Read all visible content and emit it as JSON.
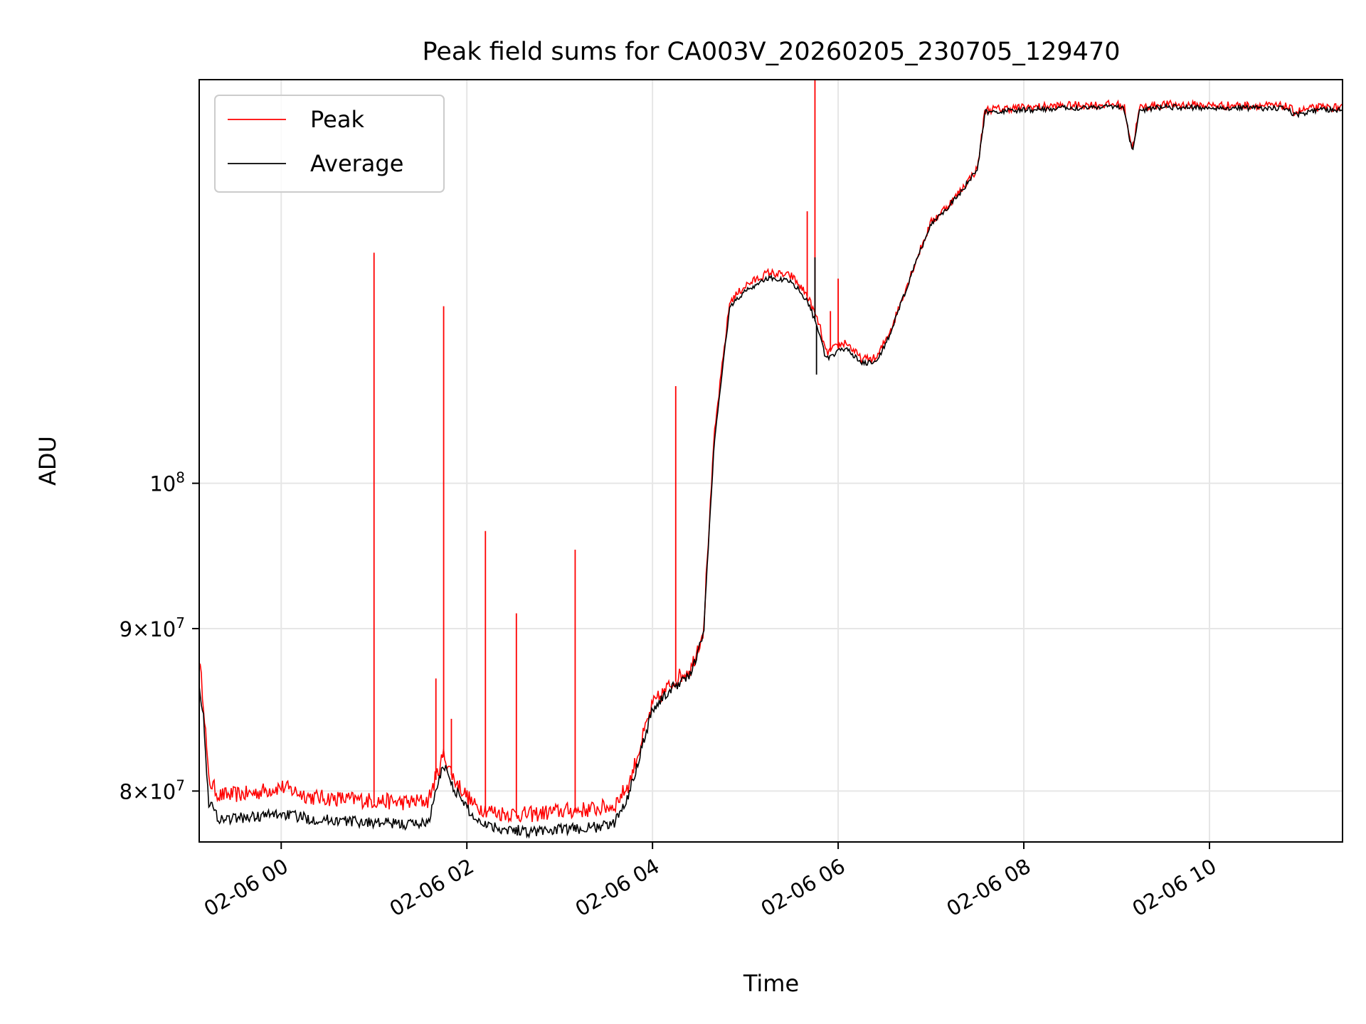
{
  "chart_data": {
    "type": "line",
    "title": "Peak field sums for CA003V_20260205_230705_129470",
    "xlabel": "Time",
    "ylabel": "ADU",
    "yscale": "log",
    "grid": true,
    "legend_position": "upper-left",
    "x_range": [
      "2026-02-05 23:07",
      "2026-02-06 11:26"
    ],
    "ylim": [
      77100000,
      134000000
    ],
    "x_ticks": [
      {
        "value": "2026-02-06 00:00",
        "label": "02-06 00"
      },
      {
        "value": "2026-02-06 02:00",
        "label": "02-06 02"
      },
      {
        "value": "2026-02-06 04:00",
        "label": "02-06 04"
      },
      {
        "value": "2026-02-06 06:00",
        "label": "02-06 06"
      },
      {
        "value": "2026-02-06 08:00",
        "label": "02-06 08"
      },
      {
        "value": "2026-02-06 10:00",
        "label": "02-06 10"
      }
    ],
    "y_ticks": [
      {
        "value": 80000000,
        "label_mantissa": "8",
        "label_base": "10",
        "label_exp": "7"
      },
      {
        "value": 90000000,
        "label_mantissa": "9",
        "label_base": "10",
        "label_exp": "7"
      },
      {
        "value": 100000000,
        "label_mantissa": "",
        "label_base": "10",
        "label_exp": "8"
      }
    ],
    "series": [
      {
        "name": "Peak",
        "color": "#ff0000",
        "x": [
          "2026-02-05 23:07",
          "2026-02-05 23:10",
          "2026-02-05 23:13",
          "2026-02-05 23:20",
          "2026-02-05 23:40",
          "2026-02-06 00:00",
          "2026-02-06 00:20",
          "2026-02-06 00:40",
          "2026-02-06 01:00",
          "2026-02-06 01:20",
          "2026-02-06 01:35",
          "2026-02-06 01:45",
          "2026-02-06 01:52",
          "2026-02-06 02:05",
          "2026-02-06 02:20",
          "2026-02-06 02:40",
          "2026-02-06 03:00",
          "2026-02-06 03:20",
          "2026-02-06 03:35",
          "2026-02-06 03:45",
          "2026-02-06 04:00",
          "2026-02-06 04:15",
          "2026-02-06 04:25",
          "2026-02-06 04:33",
          "2026-02-06 04:40",
          "2026-02-06 04:50",
          "2026-02-06 05:00",
          "2026-02-06 05:15",
          "2026-02-06 05:30",
          "2026-02-06 05:40",
          "2026-02-06 05:48",
          "2026-02-06 05:52",
          "2026-02-06 06:05",
          "2026-02-06 06:15",
          "2026-02-06 06:25",
          "2026-02-06 06:35",
          "2026-02-06 06:50",
          "2026-02-06 07:00",
          "2026-02-06 07:15",
          "2026-02-06 07:30",
          "2026-02-06 07:35",
          "2026-02-06 08:00",
          "2026-02-06 08:30",
          "2026-02-06 09:00",
          "2026-02-06 09:05",
          "2026-02-06 09:10",
          "2026-02-06 09:15",
          "2026-02-06 09:30",
          "2026-02-06 10:00",
          "2026-02-06 10:30",
          "2026-02-06 10:50",
          "2026-02-06 10:55",
          "2026-02-06 11:10",
          "2026-02-06 11:26"
        ],
        "y": [
          87800000,
          85000000,
          80500000,
          79600000,
          79700000,
          80100000,
          79500000,
          79400000,
          79300000,
          79200000,
          79300000,
          82000000,
          80500000,
          79000000,
          78600000,
          78500000,
          78700000,
          78800000,
          79000000,
          80300000,
          85000000,
          86600000,
          87300000,
          89800000,
          103500000,
          114000000,
          115300000,
          116400000,
          116100000,
          114500000,
          112000000,
          109800000,
          110700000,
          109300000,
          109400000,
          112000000,
          117300000,
          120700000,
          122800000,
          125500000,
          131000000,
          131200000,
          131400000,
          131500000,
          131200000,
          127300000,
          131200000,
          131500000,
          131400000,
          131400000,
          131300000,
          130800000,
          131200000,
          131200000
        ],
        "spikes": [
          {
            "x": "2026-02-06 01:00",
            "y": 118200000
          },
          {
            "x": "2026-02-06 01:40",
            "y": 86800000
          },
          {
            "x": "2026-02-06 01:45",
            "y": 113700000
          },
          {
            "x": "2026-02-06 01:50",
            "y": 84300000
          },
          {
            "x": "2026-02-06 02:12",
            "y": 96600000
          },
          {
            "x": "2026-02-06 02:32",
            "y": 91000000
          },
          {
            "x": "2026-02-06 03:10",
            "y": 95300000
          },
          {
            "x": "2026-02-06 04:15",
            "y": 107300000
          },
          {
            "x": "2026-02-06 05:40",
            "y": 121800000
          },
          {
            "x": "2026-02-06 05:45",
            "y": 134000000
          },
          {
            "x": "2026-02-06 05:55",
            "y": 113300000
          },
          {
            "x": "2026-02-06 06:00",
            "y": 116000000
          }
        ]
      },
      {
        "name": "Average",
        "color": "#000000",
        "x": [
          "2026-02-05 23:07",
          "2026-02-05 23:10",
          "2026-02-05 23:13",
          "2026-02-05 23:20",
          "2026-02-05 23:40",
          "2026-02-06 00:00",
          "2026-02-06 00:20",
          "2026-02-06 00:40",
          "2026-02-06 01:00",
          "2026-02-06 01:20",
          "2026-02-06 01:35",
          "2026-02-06 01:45",
          "2026-02-06 01:52",
          "2026-02-06 02:05",
          "2026-02-06 02:20",
          "2026-02-06 02:40",
          "2026-02-06 03:00",
          "2026-02-06 03:20",
          "2026-02-06 03:35",
          "2026-02-06 03:45",
          "2026-02-06 04:00",
          "2026-02-06 04:15",
          "2026-02-06 04:25",
          "2026-02-06 04:33",
          "2026-02-06 04:40",
          "2026-02-06 04:50",
          "2026-02-06 05:00",
          "2026-02-06 05:15",
          "2026-02-06 05:30",
          "2026-02-06 05:40",
          "2026-02-06 05:48",
          "2026-02-06 05:52",
          "2026-02-06 06:05",
          "2026-02-06 06:15",
          "2026-02-06 06:25",
          "2026-02-06 06:35",
          "2026-02-06 06:50",
          "2026-02-06 07:00",
          "2026-02-06 07:15",
          "2026-02-06 07:30",
          "2026-02-06 07:35",
          "2026-02-06 08:00",
          "2026-02-06 08:30",
          "2026-02-06 09:00",
          "2026-02-06 09:05",
          "2026-02-06 09:10",
          "2026-02-06 09:15",
          "2026-02-06 09:30",
          "2026-02-06 10:00",
          "2026-02-06 10:30",
          "2026-02-06 10:50",
          "2026-02-06 10:55",
          "2026-02-06 11:10",
          "2026-02-06 11:26"
        ],
        "y": [
          86500000,
          84000000,
          79300000,
          78300000,
          78400000,
          78600000,
          78300000,
          78200000,
          78100000,
          78000000,
          78100000,
          81500000,
          80000000,
          78300000,
          77800000,
          77600000,
          77700000,
          77800000,
          78000000,
          79800000,
          84800000,
          86300000,
          87000000,
          89500000,
          103000000,
          113600000,
          114900000,
          116000000,
          115700000,
          114100000,
          111500000,
          109300000,
          110300000,
          109000000,
          109100000,
          111800000,
          117200000,
          120600000,
          122700000,
          125400000,
          130800000,
          131000000,
          131200000,
          131400000,
          131000000,
          127100000,
          131000000,
          131300000,
          131200000,
          131200000,
          131100000,
          130500000,
          131000000,
          131000000
        ],
        "spikes": [
          {
            "x": "2026-02-06 05:45",
            "y": 117800000
          },
          {
            "x": "2026-02-06 05:46",
            "y": 108200000
          }
        ]
      }
    ]
  }
}
